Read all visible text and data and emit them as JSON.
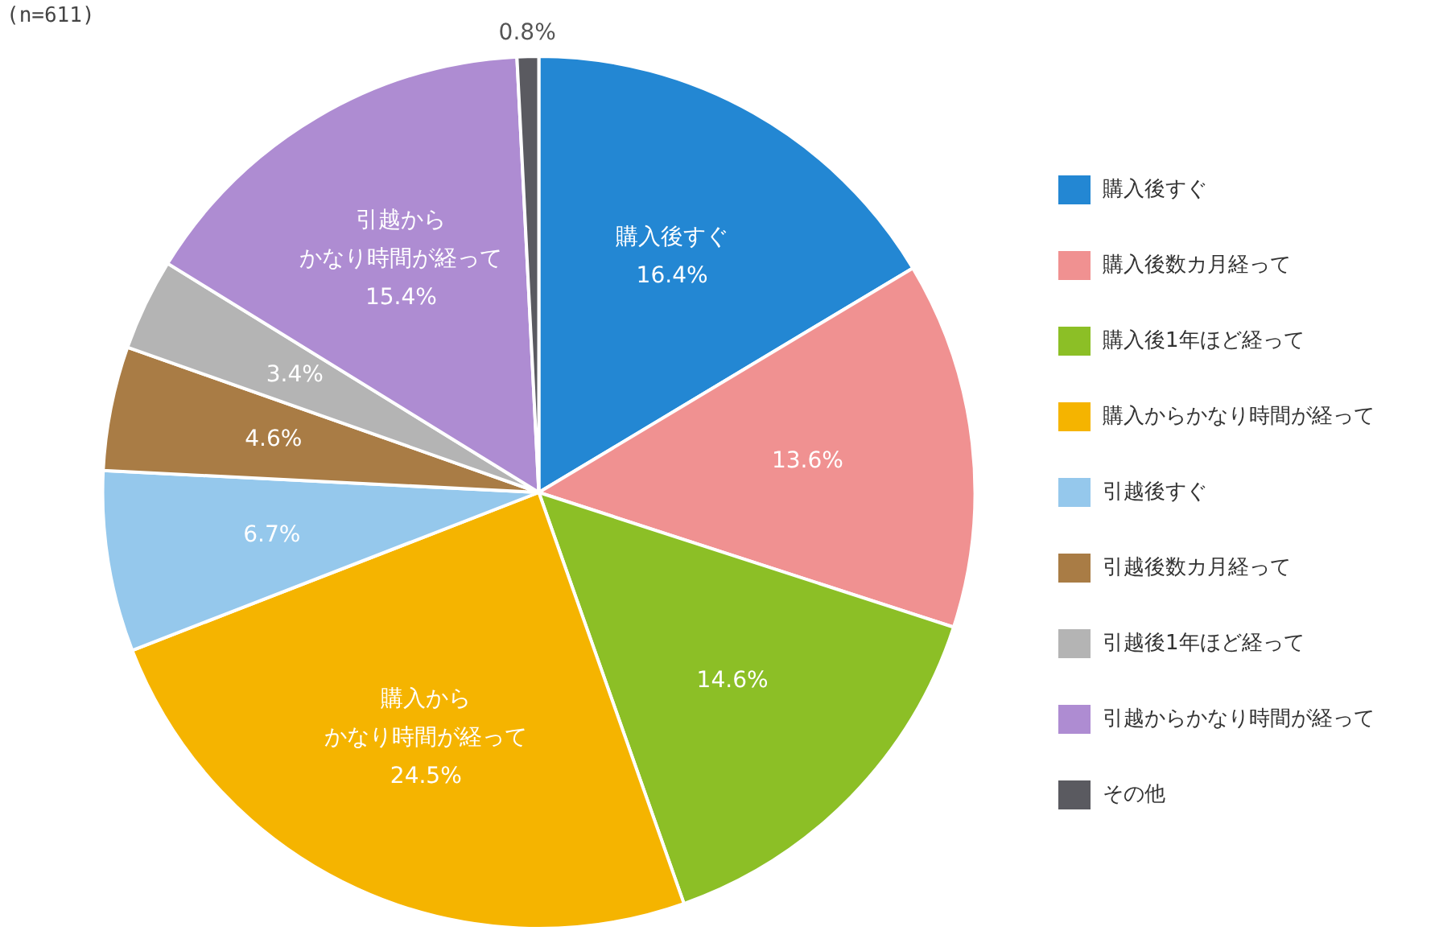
{
  "chart_data": {
    "type": "pie",
    "categories": [
      "購入後すぐ",
      "購入後数カ月経って",
      "購入後1年ほど経って",
      "購入からかなり時間が経って",
      "引越後すぐ",
      "引越後数カ月経って",
      "引越後1年ほど経って",
      "引越からかなり時間が経って",
      "その他"
    ],
    "values": [
      16.4,
      13.6,
      14.6,
      24.5,
      6.7,
      4.6,
      3.4,
      15.4,
      0.8
    ],
    "colors": [
      "#2387d3",
      "#f09191",
      "#8cbf26",
      "#f5b400",
      "#95c8ec",
      "#a97c45",
      "#b4b4b4",
      "#ae8cd2",
      "#5a5a60"
    ],
    "value_labels": [
      "購入後すぐ\n16.4%",
      "13.6%",
      "14.6%",
      "購入からかなり時間が経って\n24.5%",
      "6.7%",
      "4.6%",
      "3.4%",
      "引越からかなり時間が経って\n15.4%",
      "0.8%"
    ],
    "legend": "right",
    "annotations": [
      "(n=611)"
    ]
  }
}
